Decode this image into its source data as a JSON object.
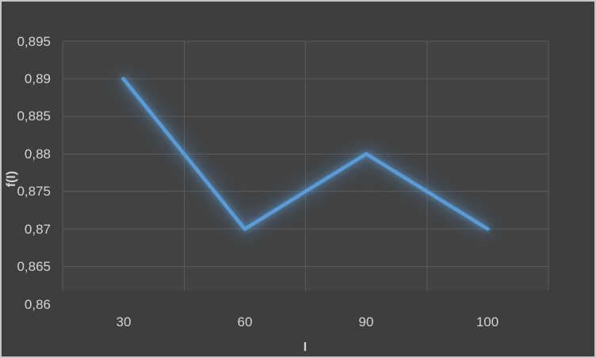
{
  "chart": {
    "y_axis": {
      "title": "f(I)",
      "tick_labels": [
        "0,895",
        "0,89",
        "0,885",
        "0,88",
        "0,875",
        "0,87",
        "0,865",
        "0,86"
      ],
      "tick_values": [
        0.895,
        0.89,
        0.885,
        0.88,
        0.875,
        0.87,
        0.865,
        0.86
      ]
    },
    "x_axis": {
      "title": "I",
      "category_labels": [
        "30",
        "60",
        "90",
        "100"
      ]
    },
    "colors": {
      "chart_background": "#3e3e3e",
      "plot_fill": "#434343",
      "gridline": "#5b5b5b",
      "text": "#d4d4d4",
      "series_line": "#5b9bd5",
      "glow": "rgba(91,155,213,0.5)",
      "outer_border": "#c6c6c6"
    }
  },
  "chart_data": {
    "type": "line",
    "categories": [
      30,
      60,
      90,
      100
    ],
    "series": [
      {
        "name": "f(I)",
        "values": [
          0.89,
          0.87,
          0.88,
          0.87
        ]
      }
    ],
    "title": "",
    "xlabel": "I",
    "ylabel": "f(I)",
    "ylim": [
      0.86,
      0.895
    ],
    "ytick_step": 0.005,
    "decimal_separator": ",",
    "grid": true,
    "legend_position": "none",
    "line_color": "#5b9bd5",
    "glow_effect": true
  }
}
